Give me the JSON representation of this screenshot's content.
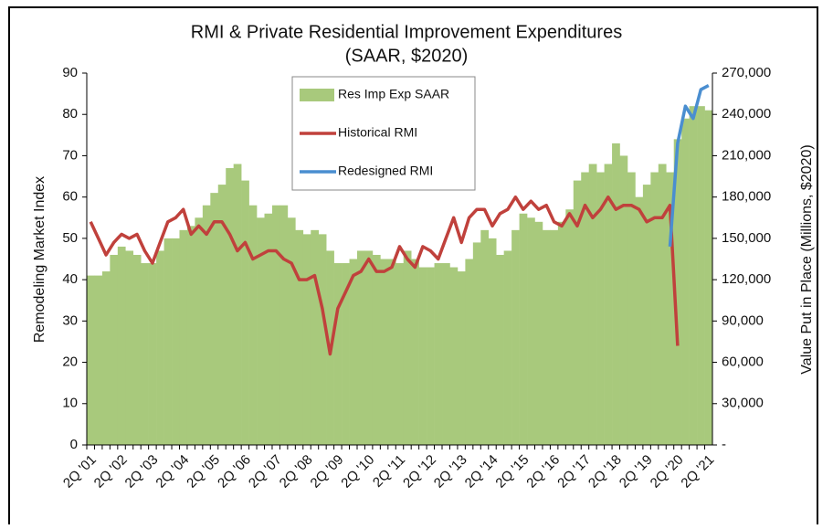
{
  "chart_data": {
    "type": "bar-line",
    "title": "RMI & Private Residential Improvement Expenditures",
    "subtitle": "(SAAR, $2020)",
    "ylabel": "Remodeling Market Index",
    "y2label": "Value Put in Place (Millions, $2020)",
    "categories": [
      "2Q '01",
      null,
      null,
      null,
      "2Q '02",
      null,
      null,
      null,
      "2Q '03",
      null,
      null,
      null,
      "2Q '04",
      null,
      null,
      null,
      "2Q '05",
      null,
      null,
      null,
      "2Q '06",
      null,
      null,
      null,
      "2Q '07",
      null,
      null,
      null,
      "2Q '08",
      null,
      null,
      null,
      "2Q '09",
      null,
      null,
      null,
      "2Q '10",
      null,
      null,
      null,
      "2Q '11",
      null,
      null,
      null,
      "2Q '12",
      null,
      null,
      null,
      "2Q '13",
      null,
      null,
      null,
      "2Q '14",
      null,
      null,
      null,
      "2Q '15",
      null,
      null,
      null,
      "2Q '16",
      null,
      null,
      null,
      "2Q '17",
      null,
      null,
      null,
      "2Q '18",
      null,
      null,
      null,
      "2Q '19",
      null,
      null,
      null,
      "2Q '20",
      null,
      null,
      null,
      "2Q '21"
    ],
    "series": [
      {
        "name": "Res Imp Exp SAAR",
        "type": "bar",
        "axis": "y2",
        "color": "#a8c97c",
        "values": [
          123000,
          123000,
          126000,
          138000,
          144000,
          141000,
          138000,
          132000,
          132000,
          141000,
          150000,
          150000,
          156000,
          159000,
          165000,
          174000,
          183000,
          189000,
          201000,
          204000,
          192000,
          174000,
          165000,
          168000,
          174000,
          174000,
          165000,
          156000,
          153000,
          156000,
          153000,
          141000,
          132000,
          132000,
          135000,
          141000,
          141000,
          138000,
          135000,
          135000,
          132000,
          141000,
          135000,
          129000,
          129000,
          132000,
          132000,
          129000,
          126000,
          135000,
          147000,
          156000,
          150000,
          138000,
          141000,
          156000,
          168000,
          165000,
          162000,
          156000,
          156000,
          162000,
          171000,
          192000,
          198000,
          204000,
          198000,
          204000,
          219000,
          210000,
          198000,
          180000,
          189000,
          198000,
          204000,
          198000,
          222000,
          237000,
          246000,
          246000,
          243000
        ]
      },
      {
        "name": "Historical RMI",
        "type": "line",
        "color": "#c0413c",
        "values": [
          54,
          50,
          46,
          49,
          51,
          50,
          51,
          47,
          44,
          49,
          54,
          55,
          57,
          51,
          53,
          51,
          54,
          54,
          51,
          47,
          49,
          45,
          46,
          47,
          47,
          45,
          44,
          40,
          40,
          41,
          33,
          22,
          33,
          37,
          41,
          42,
          45,
          42,
          42,
          43,
          48,
          45,
          43,
          48,
          47,
          45,
          50,
          55,
          49,
          55,
          57,
          57,
          53,
          56,
          57,
          60,
          57,
          59,
          57,
          58,
          54,
          53,
          56,
          53,
          58,
          55,
          57,
          60,
          57,
          58,
          58,
          57,
          54,
          55,
          55,
          58,
          24,
          null,
          null,
          null,
          null
        ]
      },
      {
        "name": "Redesigned RMI",
        "type": "line",
        "color": "#4a8ed0",
        "values": [
          null,
          null,
          null,
          null,
          null,
          null,
          null,
          null,
          null,
          null,
          null,
          null,
          null,
          null,
          null,
          null,
          null,
          null,
          null,
          null,
          null,
          null,
          null,
          null,
          null,
          null,
          null,
          null,
          null,
          null,
          null,
          null,
          null,
          null,
          null,
          null,
          null,
          null,
          null,
          null,
          null,
          null,
          null,
          null,
          null,
          null,
          null,
          null,
          null,
          null,
          null,
          null,
          null,
          null,
          null,
          null,
          null,
          null,
          null,
          null,
          null,
          null,
          null,
          null,
          null,
          null,
          null,
          null,
          null,
          null,
          null,
          null,
          null,
          null,
          null,
          48,
          73,
          82,
          79,
          86,
          87
        ]
      }
    ],
    "ylim": [
      0,
      90
    ],
    "yticks": [
      0,
      10,
      20,
      30,
      40,
      50,
      60,
      70,
      80,
      90
    ],
    "y2lim": [
      0,
      270000
    ],
    "y2ticks": [
      {
        "value": 0,
        "label": "-"
      },
      {
        "value": 30000,
        "label": "30,000"
      },
      {
        "value": 60000,
        "label": "60,000"
      },
      {
        "value": 90000,
        "label": "90,000"
      },
      {
        "value": 120000,
        "label": "120,000"
      },
      {
        "value": 150000,
        "label": "150,000"
      },
      {
        "value": 180000,
        "label": "180,000"
      },
      {
        "value": 210000,
        "label": "210,000"
      },
      {
        "value": 240000,
        "label": "240,000"
      },
      {
        "value": 270000,
        "label": "270,000"
      }
    ]
  }
}
